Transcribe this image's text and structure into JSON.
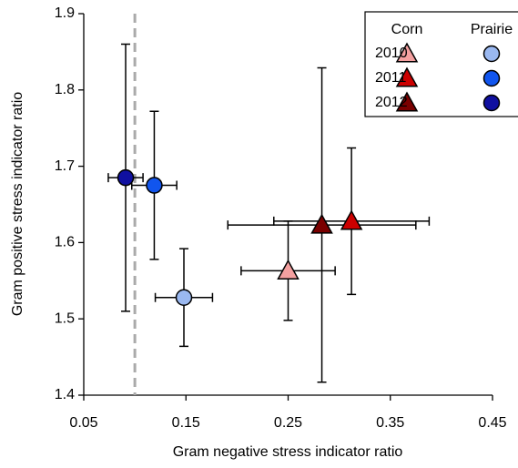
{
  "chart_data": {
    "type": "scatter",
    "xlabel": "Gram negative stress indicator ratio",
    "ylabel": "Gram positive stress indicator ratio",
    "xlim": [
      0.05,
      0.45
    ],
    "xticks": [
      0.05,
      0.15,
      0.25,
      0.35,
      0.45
    ],
    "ylim": [
      1.4,
      1.9
    ],
    "yticks": [
      1.4,
      1.5,
      1.6,
      1.7,
      1.8,
      1.9
    ],
    "vline": 0.1,
    "years": [
      "2010",
      "2011",
      "2012"
    ],
    "groups": [
      {
        "name": "Corn",
        "marker": "triangle",
        "points": [
          {
            "color": "#f4a0a0",
            "x": 0.25,
            "y": 1.563,
            "xerr": 0.046,
            "yerr": 0.065
          },
          {
            "color": "#cc0000",
            "x": 0.312,
            "y": 1.628,
            "xerr": 0.076,
            "yerr": 0.096
          },
          {
            "color": "#7a0000",
            "x": 0.283,
            "y": 1.623,
            "xerr": 0.092,
            "yerr": 0.206
          }
        ]
      },
      {
        "name": "Prairie",
        "marker": "circle",
        "points": [
          {
            "color": "#9ab8f0",
            "x": 0.148,
            "y": 1.528,
            "xerr": 0.028,
            "yerr": 0.064
          },
          {
            "color": "#1155ee",
            "x": 0.119,
            "y": 1.675,
            "xerr": 0.022,
            "yerr": 0.097
          },
          {
            "color": "#1010a0",
            "x": 0.091,
            "y": 1.685,
            "xerr": 0.017,
            "yerr": 0.175
          }
        ]
      }
    ]
  }
}
